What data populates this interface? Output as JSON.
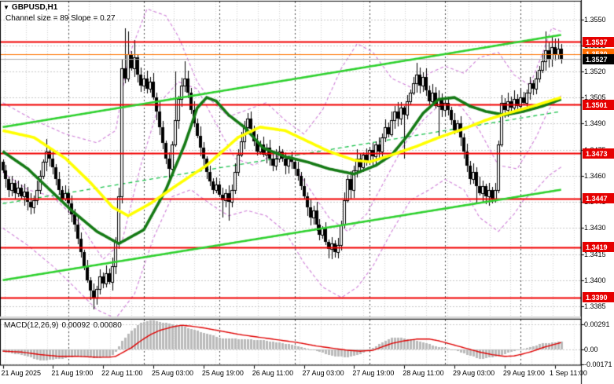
{
  "header": {
    "symbol": "GBPUSD,H1",
    "marker_icon": "▼",
    "channel_info": "Channel size = 89 Slope = 0.27"
  },
  "price_axis": {
    "plain_ticks": [
      "1.3550",
      "1.3535",
      "1.3520",
      "1.3505",
      "1.3490",
      "1.3475",
      "1.3460",
      "1.3445",
      "1.3430",
      "1.3415",
      "1.3400",
      "1.3385"
    ],
    "level_labels": [
      {
        "text": "1.3537",
        "bg": "#e60000"
      },
      {
        "text": "1.3530",
        "bg": "#ff6d00"
      },
      {
        "text": "1.3527",
        "bg": "#000000"
      },
      {
        "text": "1.3501",
        "bg": "#e60000"
      },
      {
        "text": "1.3473",
        "bg": "#e60000"
      },
      {
        "text": "1.3447",
        "bg": "#e60000"
      },
      {
        "text": "1.3419",
        "bg": "#e60000"
      },
      {
        "text": "1.3390",
        "bg": "#e60000"
      }
    ]
  },
  "time_axis": {
    "labels": [
      "21 Aug 2025",
      "21 Aug 19:00",
      "22 Aug 11:00",
      "25 Aug 03:00",
      "25 Aug 19:00",
      "26 Aug 11:00",
      "27 Aug 03:00",
      "27 Aug 19:00",
      "28 Aug 11:00",
      "29 Aug 03:00",
      "29 Aug 19:00",
      "1 Sep 11:00"
    ],
    "label_bars": [
      0,
      16,
      32,
      48,
      64,
      80,
      96,
      112,
      128,
      144,
      160,
      176
    ]
  },
  "macd_panel": {
    "name": "MACD(12,26,9)",
    "value1": "0.00092",
    "value2": "0.00080",
    "axis_ticks": [
      "0.00291",
      "0.00",
      "-0.00171"
    ],
    "axis_values": [
      0.00291,
      0,
      -0.00171
    ]
  },
  "colors": {
    "background": "#ffffff",
    "grid": "#c9c9c9",
    "vgrid": "#d4d4d4",
    "day_separator": "#4a4a4a",
    "bull_body": "#ffffff",
    "bear_body": "#000000",
    "candle_outline": "#000000",
    "level_red": "#f20000",
    "ask_orange": "#ff7300",
    "bid_gray": "#ababab",
    "channel_green": "#2ed12e",
    "channel_mid_green": "#18c24a",
    "ma_fast": "#157a15",
    "ma_slow": "#ffff00",
    "bands_violet": "#cf7fd8",
    "macd_hist": "#bababa",
    "macd_signal": "#e00000",
    "axis_text": "#000000"
  },
  "chart_data": {
    "type": "candlestick",
    "symbol": "GBPUSD",
    "timeframe": "H1",
    "title": "GBPUSD,H1",
    "bars_total": 179,
    "ylim": [
      1.3378,
      1.356
    ],
    "price_gridlines": [
      1.355,
      1.3535,
      1.352,
      1.3505,
      1.349,
      1.3475,
      1.346,
      1.3445,
      1.343,
      1.3415,
      1.34,
      1.3385
    ],
    "x_labels": [
      "21 Aug 2025",
      "21 Aug 19:00",
      "22 Aug 11:00",
      "25 Aug 03:00",
      "25 Aug 19:00",
      "26 Aug 11:00",
      "27 Aug 03:00",
      "27 Aug 19:00",
      "28 Aug 11:00",
      "29 Aug 03:00",
      "29 Aug 19:00",
      "1 Sep 11:00"
    ],
    "x_label_bars": [
      0,
      16,
      32,
      48,
      64,
      80,
      96,
      112,
      128,
      144,
      160,
      176
    ],
    "day_separator_bars": [
      21,
      45,
      69,
      93,
      117,
      141,
      165
    ],
    "first_open": 1.3468,
    "closes": [
      1.3463,
      1.3458,
      1.3452,
      1.3456,
      1.345,
      1.3453,
      1.3448,
      1.3451,
      1.3445,
      1.3442,
      1.3446,
      1.3452,
      1.346,
      1.3468,
      1.3474,
      1.347,
      1.3465,
      1.3458,
      1.3452,
      1.3447,
      1.345,
      1.3444,
      1.3438,
      1.3432,
      1.3424,
      1.3416,
      1.3408,
      1.34,
      1.3394,
      1.339,
      1.3395,
      1.3402,
      1.3398,
      1.3404,
      1.3399,
      1.3408,
      1.3422,
      1.3448,
      1.3522,
      1.3516,
      1.353,
      1.3522,
      1.3528,
      1.3518,
      1.3512,
      1.3516,
      1.351,
      1.3514,
      1.3505,
      1.3497,
      1.3488,
      1.3479,
      1.347,
      1.3464,
      1.3478,
      1.3492,
      1.3504,
      1.3512,
      1.3516,
      1.3508,
      1.3498,
      1.349,
      1.3483,
      1.3476,
      1.347,
      1.3462,
      1.3457,
      1.3452,
      1.3455,
      1.3449,
      1.3446,
      1.345,
      1.3445,
      1.3452,
      1.3462,
      1.3472,
      1.348,
      1.3488,
      1.3493,
      1.3487,
      1.348,
      1.3474,
      1.3478,
      1.3472,
      1.3476,
      1.347,
      1.3466,
      1.347,
      1.3474,
      1.347,
      1.3466,
      1.347,
      1.3468,
      1.3464,
      1.346,
      1.3454,
      1.3448,
      1.3442,
      1.3436,
      1.344,
      1.3432,
      1.3426,
      1.343,
      1.3422,
      1.3418,
      1.3421,
      1.3416,
      1.342,
      1.3432,
      1.3446,
      1.3458,
      1.3452,
      1.3463,
      1.347,
      1.3465,
      1.3472,
      1.3468,
      1.3475,
      1.3471,
      1.3478,
      1.3474,
      1.3482,
      1.3488,
      1.3484,
      1.3492,
      1.3497,
      1.3493,
      1.3499,
      1.3495,
      1.3503,
      1.3508,
      1.3513,
      1.3518,
      1.3512,
      1.3517,
      1.3509,
      1.3503,
      1.3508,
      1.35,
      1.3504,
      1.3498,
      1.3502,
      1.3498,
      1.3492,
      1.3486,
      1.349,
      1.3482,
      1.3474,
      1.3466,
      1.3458,
      1.3462,
      1.3454,
      1.345,
      1.3454,
      1.3448,
      1.3452,
      1.3447,
      1.3452,
      1.3478,
      1.3502,
      1.3498,
      1.3503,
      1.3499,
      1.3504,
      1.35,
      1.3505,
      1.3502,
      1.3508,
      1.3513,
      1.351,
      1.3516,
      1.3521,
      1.3526,
      1.3532,
      1.3527,
      1.3534,
      1.353,
      1.3533,
      1.3527
    ],
    "wick_base": 0.00012,
    "wick_var": 0.00042,
    "wick_overrides": {
      "14": {
        "h": 1.3481
      },
      "29": {
        "l": 1.3383
      },
      "38": {
        "h": 1.3527,
        "l": 1.3444
      },
      "39": {
        "h": 1.3545
      },
      "40": {
        "h": 1.3543
      },
      "42": {
        "h": 1.3538
      },
      "53": {
        "l": 1.3458
      },
      "55": {
        "h": 1.352
      },
      "58": {
        "h": 1.3526
      },
      "70": {
        "l": 1.3436
      },
      "72": {
        "l": 1.3434
      },
      "78": {
        "h": 1.3496
      },
      "105": {
        "l": 1.3412
      },
      "106": {
        "l": 1.3413
      },
      "128": {
        "l": 1.347
      },
      "132": {
        "h": 1.3525
      },
      "139": {
        "l": 1.3483
      },
      "151": {
        "l": 1.3444
      },
      "155": {
        "l": 1.3443
      },
      "173": {
        "h": 1.3543
      },
      "175": {
        "h": 1.354
      },
      "177": {
        "h": 1.3539
      },
      "178": {
        "h": 1.3536
      }
    },
    "levels": {
      "horizontal_red": [
        1.3537,
        1.3501,
        1.3473,
        1.3447,
        1.3419,
        1.339
      ],
      "ask_line": 1.353,
      "bid_line": 1.3527
    },
    "channel": {
      "upper": [
        [
          0,
          1.3488
        ],
        [
          178,
          1.3541
        ]
      ],
      "middle_dashed": [
        [
          0,
          1.3444
        ],
        [
          178,
          1.3497
        ]
      ],
      "lower": [
        [
          0,
          1.34
        ],
        [
          178,
          1.3452
        ]
      ]
    },
    "ma_fast_green": [
      [
        0,
        1.3474
      ],
      [
        8,
        1.3464
      ],
      [
        15,
        1.3452
      ],
      [
        22,
        1.344
      ],
      [
        30,
        1.3428
      ],
      [
        37,
        1.3421
      ],
      [
        45,
        1.3429
      ],
      [
        52,
        1.3452
      ],
      [
        58,
        1.3478
      ],
      [
        62,
        1.3499
      ],
      [
        65,
        1.3505
      ],
      [
        68,
        1.3503
      ],
      [
        72,
        1.3495
      ],
      [
        77,
        1.3488
      ],
      [
        83,
        1.3476
      ],
      [
        90,
        1.3471
      ],
      [
        97,
        1.3468
      ],
      [
        104,
        1.3464
      ],
      [
        112,
        1.3461
      ],
      [
        119,
        1.3466
      ],
      [
        124,
        1.3472
      ],
      [
        129,
        1.3483
      ],
      [
        134,
        1.3496
      ],
      [
        139,
        1.3504
      ],
      [
        144,
        1.3505
      ],
      [
        149,
        1.35
      ],
      [
        154,
        1.3497
      ],
      [
        160,
        1.3495
      ],
      [
        166,
        1.3497
      ],
      [
        172,
        1.35
      ],
      [
        178,
        1.3504
      ]
    ],
    "ma_slow_yellow": [
      [
        0,
        1.3486
      ],
      [
        10,
        1.3482
      ],
      [
        20,
        1.347
      ],
      [
        28,
        1.3456
      ],
      [
        35,
        1.3442
      ],
      [
        40,
        1.3437
      ],
      [
        47,
        1.3444
      ],
      [
        55,
        1.3454
      ],
      [
        65,
        1.3466
      ],
      [
        75,
        1.3482
      ],
      [
        82,
        1.3488
      ],
      [
        90,
        1.3486
      ],
      [
        97,
        1.348
      ],
      [
        104,
        1.3474
      ],
      [
        112,
        1.3469
      ],
      [
        117,
        1.3468
      ],
      [
        124,
        1.3472
      ],
      [
        132,
        1.3477
      ],
      [
        139,
        1.3482
      ],
      [
        147,
        1.3487
      ],
      [
        154,
        1.3492
      ],
      [
        161,
        1.3496
      ],
      [
        169,
        1.35
      ],
      [
        178,
        1.3505
      ]
    ],
    "band_upper": [
      [
        0,
        1.3502
      ],
      [
        10,
        1.3492
      ],
      [
        20,
        1.3484
      ],
      [
        30,
        1.3479
      ],
      [
        36,
        1.3486
      ],
      [
        40,
        1.3528
      ],
      [
        46,
        1.3556
      ],
      [
        52,
        1.3552
      ],
      [
        56,
        1.354
      ],
      [
        62,
        1.3514
      ],
      [
        66,
        1.3504
      ],
      [
        72,
        1.3494
      ],
      [
        78,
        1.3498
      ],
      [
        84,
        1.3502
      ],
      [
        90,
        1.3492
      ],
      [
        96,
        1.3484
      ],
      [
        102,
        1.3498
      ],
      [
        108,
        1.3522
      ],
      [
        113,
        1.3536
      ],
      [
        118,
        1.3531
      ],
      [
        124,
        1.3516
      ],
      [
        130,
        1.3511
      ],
      [
        136,
        1.3519
      ],
      [
        141,
        1.3523
      ],
      [
        147,
        1.3519
      ],
      [
        152,
        1.3528
      ],
      [
        158,
        1.3531
      ],
      [
        163,
        1.3518
      ],
      [
        168,
        1.3512
      ],
      [
        172,
        1.353
      ],
      [
        175,
        1.3545
      ],
      [
        178,
        1.3543
      ]
    ],
    "band_middle": [
      [
        0,
        1.3462
      ],
      [
        8,
        1.3452
      ],
      [
        16,
        1.3448
      ],
      [
        24,
        1.3434
      ],
      [
        32,
        1.3412
      ],
      [
        38,
        1.3422
      ],
      [
        44,
        1.3466
      ],
      [
        50,
        1.3502
      ],
      [
        56,
        1.3514
      ],
      [
        62,
        1.351
      ],
      [
        68,
        1.349
      ],
      [
        74,
        1.347
      ],
      [
        80,
        1.3466
      ],
      [
        86,
        1.3472
      ],
      [
        92,
        1.3468
      ],
      [
        98,
        1.3452
      ],
      [
        104,
        1.3436
      ],
      [
        110,
        1.3428
      ],
      [
        116,
        1.3438
      ],
      [
        122,
        1.3458
      ],
      [
        128,
        1.3478
      ],
      [
        134,
        1.3492
      ],
      [
        140,
        1.3502
      ],
      [
        146,
        1.35
      ],
      [
        152,
        1.3486
      ],
      [
        158,
        1.3466
      ],
      [
        164,
        1.3464
      ],
      [
        170,
        1.3482
      ],
      [
        174,
        1.3498
      ],
      [
        178,
        1.3506
      ]
    ],
    "band_lower": [
      [
        0,
        1.343
      ],
      [
        8,
        1.342
      ],
      [
        16,
        1.3408
      ],
      [
        24,
        1.3394
      ],
      [
        30,
        1.3383
      ],
      [
        36,
        1.3378
      ],
      [
        42,
        1.3392
      ],
      [
        48,
        1.3424
      ],
      [
        54,
        1.3448
      ],
      [
        60,
        1.3452
      ],
      [
        66,
        1.3444
      ],
      [
        72,
        1.3437
      ],
      [
        78,
        1.344
      ],
      [
        84,
        1.3437
      ],
      [
        90,
        1.3428
      ],
      [
        96,
        1.341
      ],
      [
        102,
        1.3396
      ],
      [
        108,
        1.339
      ],
      [
        113,
        1.3396
      ],
      [
        118,
        1.3408
      ],
      [
        124,
        1.3428
      ],
      [
        130,
        1.3446
      ],
      [
        136,
        1.3452
      ],
      [
        141,
        1.3458
      ],
      [
        147,
        1.3452
      ],
      [
        152,
        1.3436
      ],
      [
        158,
        1.3428
      ],
      [
        163,
        1.3438
      ],
      [
        166,
        1.3446
      ],
      [
        170,
        1.3452
      ],
      [
        174,
        1.346
      ],
      [
        178,
        1.3465
      ]
    ],
    "macd": {
      "label": "MACD(12,26,9)",
      "current_macd": 0.00092,
      "current_signal": 0.0008,
      "axis_values": [
        0.00291,
        0,
        -0.00171
      ],
      "keypoints_bar_macd_signal": [
        [
          0,
          -0.0003,
          -0.0002
        ],
        [
          6,
          -0.0006,
          -0.0003
        ],
        [
          12,
          -0.0013,
          -0.0006
        ],
        [
          18,
          -0.0011,
          -0.0008
        ],
        [
          24,
          -0.0008,
          -0.0008
        ],
        [
          30,
          -0.001,
          -0.0009
        ],
        [
          34,
          -0.0009,
          -0.0009
        ],
        [
          36,
          -0.0003,
          -0.0008
        ],
        [
          38,
          0.001,
          -0.0004
        ],
        [
          41,
          0.0022,
          0.0002
        ],
        [
          44,
          0.0031,
          0.001
        ],
        [
          47,
          0.0034,
          0.0017
        ],
        [
          50,
          0.0032,
          0.0022
        ],
        [
          54,
          0.0029,
          0.0026
        ],
        [
          57,
          0.0027,
          0.0028
        ],
        [
          60,
          0.0024,
          0.0027
        ],
        [
          64,
          0.0019,
          0.0025
        ],
        [
          70,
          0.0013,
          0.0021
        ],
        [
          76,
          0.0012,
          0.0017
        ],
        [
          82,
          0.0011,
          0.0014
        ],
        [
          88,
          0.0008,
          0.0011
        ],
        [
          94,
          0.0004,
          0.0008
        ],
        [
          100,
          -0.0002,
          0.0004
        ],
        [
          106,
          -0.0008,
          0.0001
        ],
        [
          110,
          -0.0009,
          -0.0001
        ],
        [
          114,
          -0.0005,
          -0.0002
        ],
        [
          118,
          0.0002,
          -0.0001
        ],
        [
          121,
          0.0008,
          0.0003
        ],
        [
          124,
          0.0014,
          0.0007
        ],
        [
          128,
          0.0013,
          0.001
        ],
        [
          132,
          0.001,
          0.0012
        ],
        [
          136,
          0.0006,
          0.0012
        ],
        [
          139,
          0.0003,
          0.001
        ],
        [
          142,
          0.0001,
          0.0007
        ],
        [
          145,
          -0.0002,
          0.0004
        ],
        [
          148,
          -0.0006,
          0.0001
        ],
        [
          152,
          -0.0011,
          -0.0003
        ],
        [
          156,
          -0.0009,
          -0.0006
        ],
        [
          160,
          -0.0005,
          -0.0008
        ],
        [
          163,
          -0.0002,
          -0.00075
        ],
        [
          166,
          0.0001,
          -0.0005
        ],
        [
          169,
          0.0004,
          -0.0002
        ],
        [
          172,
          0.0007,
          0.0002
        ],
        [
          175,
          0.0008,
          0.0005
        ],
        [
          178,
          0.00092,
          0.0008
        ]
      ]
    }
  }
}
